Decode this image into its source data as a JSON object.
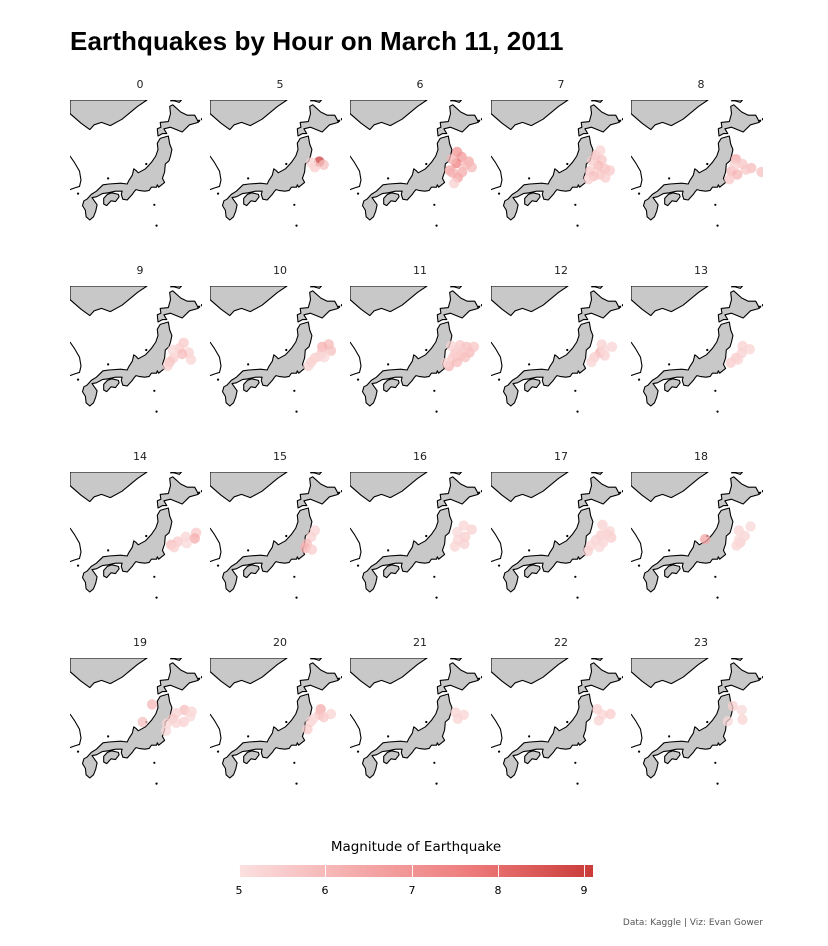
{
  "chart_data": {
    "type": "scatter",
    "title": "Earthquakes by Hour on March 11, 2011",
    "legend": {
      "title": "Magnitude of Earthquake",
      "ticks": [
        "5",
        "6",
        "7",
        "8",
        "9"
      ],
      "range": [
        5,
        9.1
      ],
      "colors": [
        "#fbe0e0",
        "#c93b38"
      ]
    },
    "caption": "Data: Kaggle | Viz: Evan Gower",
    "panels": [
      {
        "hour": "0",
        "points": []
      },
      {
        "hour": "5",
        "points": [
          [
            142.9,
            38.3,
            9.0
          ],
          [
            143.5,
            37.9,
            5.8
          ],
          [
            142.3,
            37.6,
            5.5
          ],
          [
            141.8,
            38.2,
            5.3
          ]
        ]
      },
      {
        "hour": "6",
        "points": [
          [
            142.6,
            39.5,
            7.0
          ],
          [
            143.2,
            38.9,
            6.8
          ],
          [
            142.5,
            38.1,
            7.5
          ],
          [
            141.6,
            37.2,
            6.5
          ],
          [
            142.7,
            36.3,
            6.6
          ],
          [
            143.3,
            37.0,
            6.3
          ],
          [
            144.2,
            38.3,
            6.4
          ],
          [
            141.9,
            38.6,
            6.1
          ],
          [
            142.2,
            35.6,
            5.4
          ],
          [
            144.6,
            37.6,
            6.0
          ],
          [
            142.0,
            36.9,
            6.2
          ],
          [
            143.8,
            37.9,
            6.0
          ]
        ]
      },
      {
        "hour": "7",
        "points": [
          [
            142.3,
            39.1,
            5.8
          ],
          [
            143.1,
            38.5,
            5.7
          ],
          [
            142.6,
            37.8,
            6.0
          ],
          [
            141.5,
            37.1,
            5.6
          ],
          [
            143.5,
            37.4,
            5.8
          ],
          [
            142.0,
            36.5,
            5.9
          ],
          [
            142.9,
            36.7,
            5.7
          ],
          [
            144.2,
            37.2,
            5.6
          ],
          [
            141.3,
            36.1,
            5.4
          ],
          [
            141.8,
            38.4,
            5.5
          ],
          [
            142.9,
            39.7,
            5.3
          ],
          [
            143.6,
            36.3,
            5.5
          ]
        ]
      },
      {
        "hour": "8",
        "points": [
          [
            142.3,
            38.6,
            6.3
          ],
          [
            143.2,
            38.0,
            5.7
          ],
          [
            144.4,
            37.5,
            5.9
          ],
          [
            141.7,
            37.1,
            6.0
          ],
          [
            142.5,
            36.7,
            6.1
          ],
          [
            141.4,
            36.1,
            5.6
          ],
          [
            143.7,
            37.3,
            5.6
          ],
          [
            145.8,
            37.0,
            5.8
          ],
          [
            142.1,
            37.8,
            5.4
          ]
        ]
      },
      {
        "hour": "9",
        "points": [
          [
            143.5,
            38.9,
            5.6
          ],
          [
            142.9,
            38.2,
            5.5
          ],
          [
            144.2,
            37.7,
            5.4
          ],
          [
            143.3,
            37.5,
            5.9
          ],
          [
            142.1,
            37.0,
            5.5
          ],
          [
            141.6,
            36.5,
            5.7
          ],
          [
            144.5,
            36.8,
            5.3
          ],
          [
            142.0,
            38.0,
            5.2
          ],
          [
            141.3,
            36.0,
            5.4
          ]
        ]
      },
      {
        "hour": "10",
        "points": [
          [
            144.2,
            38.7,
            6.0
          ],
          [
            143.3,
            38.4,
            6.2
          ],
          [
            144.5,
            37.9,
            5.8
          ],
          [
            143.2,
            37.6,
            5.7
          ],
          [
            142.3,
            37.0,
            5.5
          ],
          [
            141.8,
            36.5,
            5.4
          ],
          [
            142.9,
            37.2,
            5.3
          ],
          [
            143.6,
            37.1,
            5.2
          ],
          [
            141.4,
            36.0,
            5.3
          ]
        ]
      },
      {
        "hour": "11",
        "points": [
          [
            143.0,
            38.6,
            5.6
          ],
          [
            143.9,
            38.4,
            5.8
          ],
          [
            142.5,
            38.0,
            5.4
          ],
          [
            144.3,
            37.7,
            6.0
          ],
          [
            143.1,
            37.3,
            5.7
          ],
          [
            142.0,
            37.0,
            5.6
          ],
          [
            142.6,
            36.5,
            5.9
          ],
          [
            141.5,
            36.0,
            6.1
          ],
          [
            144.9,
            38.4,
            5.7
          ],
          [
            143.5,
            37.9,
            5.5
          ],
          [
            141.8,
            38.5,
            5.3
          ],
          [
            142.3,
            37.5,
            5.5
          ],
          [
            143.7,
            37.1,
            5.8
          ],
          [
            141.1,
            36.4,
            5.4
          ]
        ]
      },
      {
        "hour": "12",
        "points": [
          [
            143.1,
            38.7,
            5.4
          ],
          [
            144.5,
            38.4,
            5.3
          ],
          [
            142.9,
            37.7,
            6.2
          ],
          [
            142.1,
            37.1,
            5.5
          ],
          [
            143.5,
            37.3,
            5.4
          ],
          [
            141.7,
            36.5,
            5.3
          ],
          [
            143.4,
            38.0,
            5.2
          ]
        ]
      },
      {
        "hour": "13",
        "points": [
          [
            143.2,
            38.5,
            5.4
          ],
          [
            144.2,
            38.1,
            5.3
          ],
          [
            143.1,
            37.6,
            5.4
          ],
          [
            142.3,
            37.0,
            5.5
          ],
          [
            141.6,
            36.4,
            5.5
          ],
          [
            142.6,
            36.8,
            5.3
          ]
        ]
      },
      {
        "hour": "14",
        "points": [
          [
            145.2,
            38.4,
            5.6
          ],
          [
            143.8,
            37.9,
            5.3
          ],
          [
            145.0,
            37.7,
            6.3
          ],
          [
            142.7,
            37.3,
            5.6
          ],
          [
            141.8,
            36.9,
            5.9
          ],
          [
            142.2,
            36.6,
            5.4
          ],
          [
            143.9,
            37.1,
            5.2
          ]
        ]
      },
      {
        "hour": "15",
        "points": [
          [
            142.3,
            38.7,
            5.3
          ],
          [
            141.8,
            37.9,
            5.4
          ],
          [
            141.2,
            37.0,
            6.0
          ],
          [
            141.0,
            36.5,
            6.2
          ],
          [
            141.9,
            36.3,
            5.5
          ]
        ]
      },
      {
        "hour": "16",
        "points": [
          [
            143.5,
            39.3,
            5.3
          ],
          [
            144.6,
            38.8,
            5.4
          ],
          [
            142.6,
            38.5,
            5.2
          ],
          [
            143.7,
            37.9,
            5.5
          ],
          [
            142.7,
            37.5,
            5.3
          ],
          [
            143.6,
            37.0,
            5.4
          ],
          [
            142.3,
            36.7,
            5.3
          ]
        ]
      },
      {
        "hour": "17",
        "points": [
          [
            143.2,
            39.4,
            5.4
          ],
          [
            144.2,
            38.6,
            5.3
          ],
          [
            143.0,
            38.1,
            5.5
          ],
          [
            144.4,
            37.8,
            5.5
          ],
          [
            142.3,
            37.5,
            5.4
          ],
          [
            143.3,
            37.2,
            5.3
          ],
          [
            141.6,
            36.8,
            5.3
          ],
          [
            141.2,
            36.1,
            5.4
          ],
          [
            142.8,
            36.6,
            5.2
          ],
          [
            143.8,
            38.3,
            5.3
          ]
        ]
      },
      {
        "hour": "18",
        "points": [
          [
            144.3,
            39.2,
            5.2
          ],
          [
            142.7,
            38.7,
            5.3
          ],
          [
            143.5,
            38.0,
            5.3
          ],
          [
            138.1,
            37.6,
            6.5
          ],
          [
            142.9,
            37.2,
            5.5
          ],
          [
            142.4,
            36.8,
            5.3
          ],
          [
            142.7,
            37.5,
            5.2
          ]
        ]
      },
      {
        "hour": "19",
        "points": [
          [
            139.2,
            40.2,
            6.0
          ],
          [
            143.6,
            39.5,
            5.9
          ],
          [
            142.5,
            39.1,
            5.4
          ],
          [
            144.6,
            39.3,
            5.3
          ],
          [
            142.0,
            38.4,
            5.6
          ],
          [
            143.5,
            38.0,
            5.4
          ],
          [
            144.4,
            38.7,
            5.2
          ],
          [
            137.9,
            38.0,
            5.8
          ],
          [
            141.2,
            37.8,
            5.3
          ],
          [
            141.1,
            36.9,
            5.2
          ],
          [
            142.5,
            37.9,
            5.3
          ]
        ]
      },
      {
        "hour": "20",
        "points": [
          [
            143.1,
            39.6,
            6.3
          ],
          [
            144.5,
            39.0,
            5.3
          ],
          [
            142.9,
            38.9,
            5.9
          ],
          [
            143.5,
            38.6,
            5.6
          ],
          [
            141.7,
            38.0,
            5.3
          ],
          [
            141.3,
            37.1,
            5.5
          ],
          [
            142.1,
            38.4,
            5.2
          ]
        ]
      },
      {
        "hour": "21",
        "points": [
          [
            142.4,
            39.2,
            5.3
          ],
          [
            143.5,
            38.9,
            5.3
          ],
          [
            142.7,
            38.4,
            5.3
          ]
        ]
      },
      {
        "hour": "22",
        "points": [
          [
            142.5,
            39.6,
            5.4
          ],
          [
            143.2,
            38.9,
            5.3
          ],
          [
            144.3,
            39.0,
            5.5
          ],
          [
            142.7,
            38.2,
            5.3
          ]
        ]
      },
      {
        "hour": "23",
        "points": [
          [
            141.9,
            40.0,
            5.4
          ],
          [
            143.1,
            39.5,
            5.2
          ],
          [
            143.2,
            38.3,
            5.3
          ],
          [
            141.2,
            38.1,
            5.2
          ]
        ]
      }
    ]
  }
}
